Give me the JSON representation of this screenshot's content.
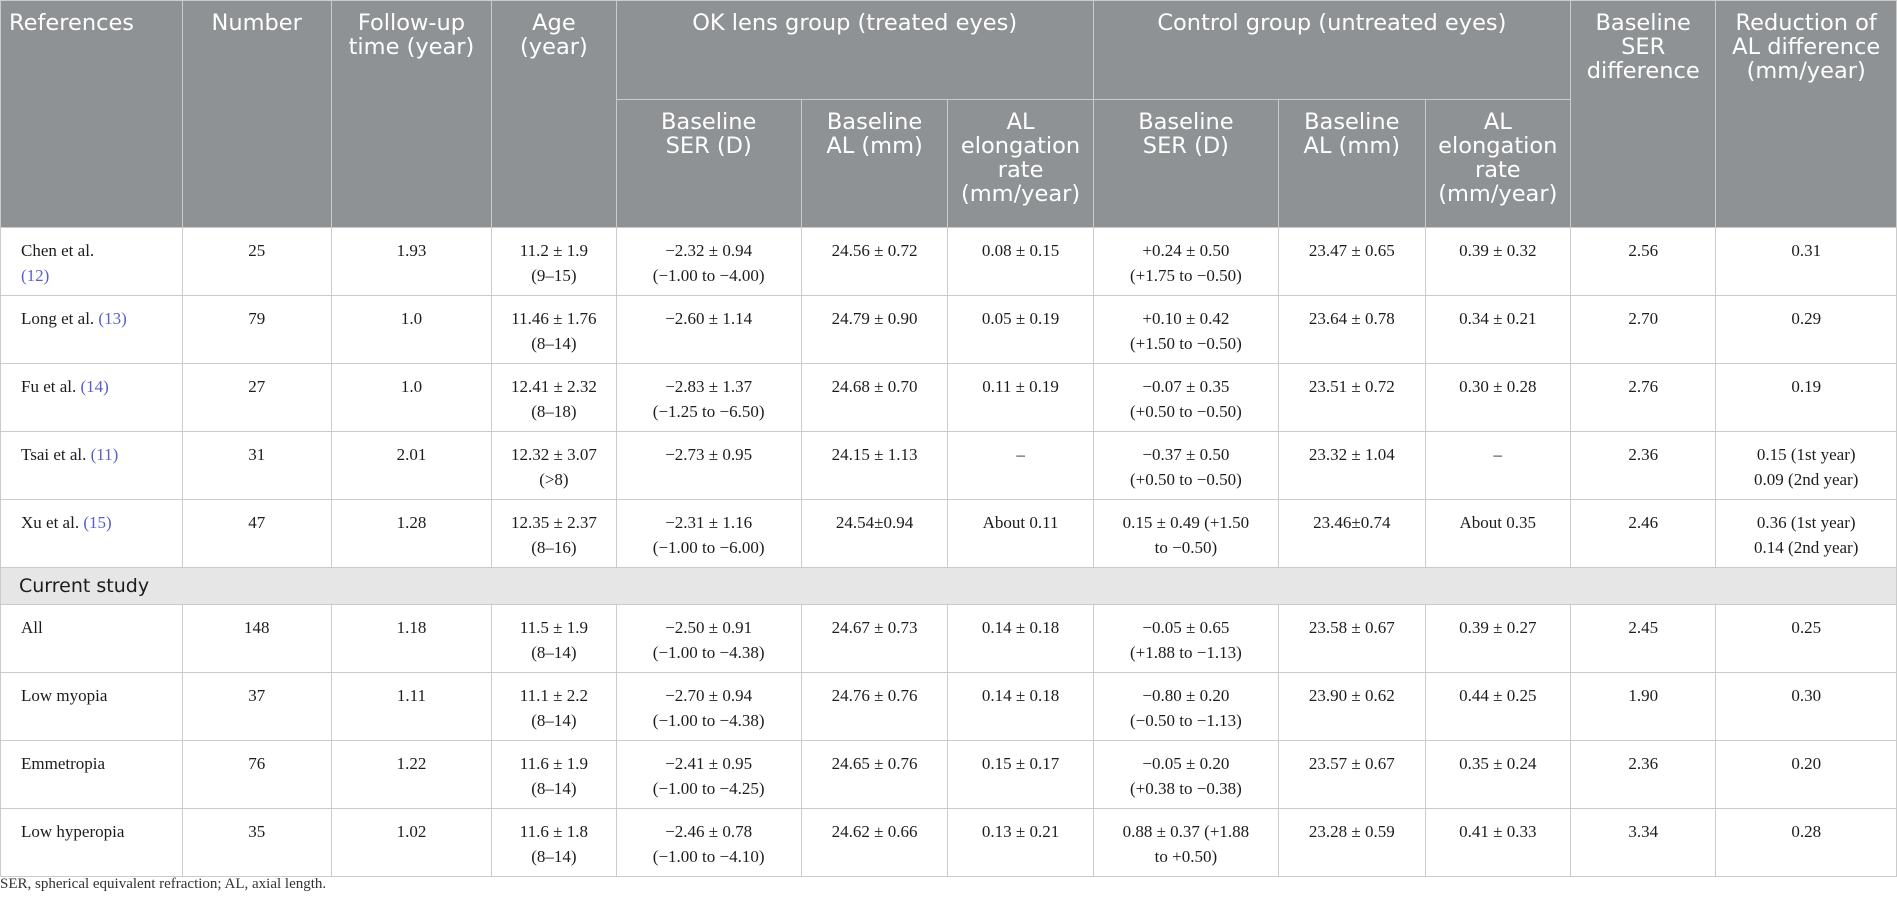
{
  "headers": {
    "references": "References",
    "number": "Number",
    "followup": "Follow-up\ntime (year)",
    "age": "Age\n(year)",
    "ok_group": "OK lens group (treated eyes)",
    "control_group": "Control group (untreated eyes)",
    "baseline_ser_diff": "Baseline\nSER\ndifference",
    "reduction_al": "Reduction of\nAL difference\n(mm/year)",
    "ok_ser": "Baseline\nSER (D)",
    "ok_al": "Baseline\nAL (mm)",
    "ok_rate": "AL\nelongation\nrate\n(mm/year)",
    "ctrl_ser": "Baseline\nSER (D)",
    "ctrl_al": "Baseline\nAL (mm)",
    "ctrl_rate": "AL\nelongation\nrate\n(mm/year)"
  },
  "prior_studies": [
    {
      "ref": "Chen et al.\n",
      "cite": "(12)",
      "number": "25",
      "followup": "1.93",
      "age": "11.2 ± 1.9\n(9–15)",
      "ok_ser": "−2.32 ± 0.94\n(−1.00 to −4.00)",
      "ok_al": "24.56 ± 0.72",
      "ok_rate": "0.08 ± 0.15",
      "ctrl_ser": "+0.24 ± 0.50\n(+1.75 to −0.50)",
      "ctrl_al": "23.47 ± 0.65",
      "ctrl_rate": "0.39 ± 0.32",
      "ser_diff": "2.56",
      "reduction": "0.31"
    },
    {
      "ref": "Long et al. ",
      "cite": "(13)",
      "number": "79",
      "followup": "1.0",
      "age": "11.46 ± 1.76\n(8–14)",
      "ok_ser": "−2.60 ± 1.14",
      "ok_al": "24.79 ± 0.90",
      "ok_rate": "0.05 ± 0.19",
      "ctrl_ser": "+0.10 ± 0.42\n(+1.50 to −0.50)",
      "ctrl_al": "23.64 ± 0.78",
      "ctrl_rate": "0.34 ± 0.21",
      "ser_diff": "2.70",
      "reduction": "0.29"
    },
    {
      "ref": "Fu et al. ",
      "cite": "(14)",
      "number": "27",
      "followup": "1.0",
      "age": "12.41 ± 2.32\n(8–18)",
      "ok_ser": "−2.83 ± 1.37\n(−1.25 to −6.50)",
      "ok_al": "24.68 ± 0.70",
      "ok_rate": "0.11  ± 0.19",
      "ctrl_ser": "−0.07 ± 0.35\n(+0.50 to −0.50)",
      "ctrl_al": "23.51 ± 0.72",
      "ctrl_rate": "0.30 ± 0.28",
      "ser_diff": "2.76",
      "reduction": "0.19"
    },
    {
      "ref": "Tsai et al. ",
      "cite": "(11)",
      "number": "31",
      "followup": "2.01",
      "age": "12.32 ± 3.07\n(>8)",
      "ok_ser": "−2.73 ± 0.95",
      "ok_al": "24.15 ± 1.13",
      "ok_rate": "–",
      "ctrl_ser": "−0.37 ± 0.50\n(+0.50 to −0.50)",
      "ctrl_al": "23.32 ± 1.04",
      "ctrl_rate": "–",
      "ser_diff": "2.36",
      "reduction": "0.15 (1st year)\n0.09 (2nd year)"
    },
    {
      "ref": "Xu et al. ",
      "cite": "(15)",
      "number": "47",
      "followup": "1.28",
      "age": "12.35 ± 2.37\n(8–16)",
      "ok_ser": "−2.31 ± 1.16\n(−1.00 to −6.00)",
      "ok_al": "24.54±0.94",
      "ok_rate": "About 0.11",
      "ctrl_ser": "0.15 ± 0.49 (+1.50\nto −0.50)",
      "ctrl_al": "23.46±0.74",
      "ctrl_rate": "About 0.35",
      "ser_diff": "2.46",
      "reduction": "0.36 (1st year)\n0.14 (2nd year)"
    }
  ],
  "section_label": "Current study",
  "current_study": [
    {
      "ref": "All",
      "number": "148",
      "followup": "1.18",
      "age": "11.5 ± 1.9\n(8–14)",
      "ok_ser": "−2.50 ± 0.91\n(−1.00 to −4.38)",
      "ok_al": "24.67 ± 0.73",
      "ok_rate": "0.14 ± 0.18",
      "ctrl_ser": "−0.05 ± 0.65\n(+1.88 to −1.13)",
      "ctrl_al": "23.58 ± 0.67",
      "ctrl_rate": "0.39 ± 0.27",
      "ser_diff": "2.45",
      "reduction": "0.25"
    },
    {
      "ref": "Low myopia",
      "number": "37",
      "followup": "1.11",
      "age": "11.1 ± 2.2\n(8–14)",
      "ok_ser": "−2.70 ± 0.94\n(−1.00 to −4.38)",
      "ok_al": "24.76 ± 0.76",
      "ok_rate": "0.14 ± 0.18",
      "ctrl_ser": "−0.80 ± 0.20\n(−0.50 to −1.13)",
      "ctrl_al": "23.90 ± 0.62",
      "ctrl_rate": "0.44 ± 0.25",
      "ser_diff": "1.90",
      "reduction": "0.30"
    },
    {
      "ref": "Emmetropia",
      "number": "76",
      "followup": "1.22",
      "age": "11.6 ± 1.9\n(8–14)",
      "ok_ser": "−2.41 ± 0.95\n(−1.00 to −4.25)",
      "ok_al": "24.65 ± 0.76",
      "ok_rate": "0.15 ± 0.17",
      "ctrl_ser": "−0.05 ± 0.20\n(+0.38 to −0.38)",
      "ctrl_al": "23.57 ± 0.67",
      "ctrl_rate": "0.35 ± 0.24",
      "ser_diff": "2.36",
      "reduction": "0.20"
    },
    {
      "ref": "Low hyperopia",
      "number": "35",
      "followup": "1.02",
      "age": "11.6 ± 1.8\n(8–14)",
      "ok_ser": "−2.46 ± 0.78\n(−1.00 to −4.10)",
      "ok_al": "24.62 ± 0.66",
      "ok_rate": "0.13 ± 0.21",
      "ctrl_ser": "0.88 ± 0.37 (+1.88\nto +0.50)",
      "ctrl_al": "23.28 ± 0.59",
      "ctrl_rate": "0.41 ± 0.33",
      "ser_diff": "3.34",
      "reduction": "0.28"
    }
  ],
  "footnote": "SER, spherical equivalent refraction; AL, axial length."
}
